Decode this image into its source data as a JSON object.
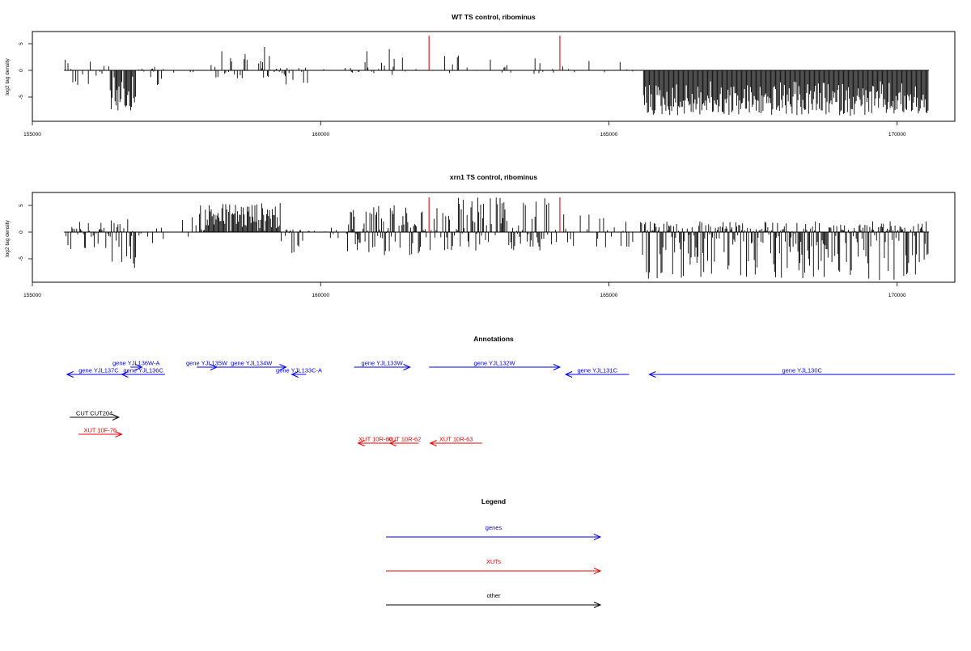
{
  "chart_data": [
    {
      "type": "bar",
      "title": "WT TS control, ribominus",
      "ylabel": "log2 tag density",
      "xlim": [
        155000,
        171000
      ],
      "ylim": [
        -9,
        7
      ],
      "xticks": [
        155000,
        160000,
        165000,
        170000
      ],
      "yticks": [
        -5,
        0,
        5
      ],
      "baseline": [
        155550,
        170550
      ],
      "marker_lines": {
        "color": "#e41a1c",
        "x": [
          161880,
          164150
        ],
        "height": 6.5
      },
      "series": [
        {
          "from": 155550,
          "to": 156350,
          "min": -3,
          "max": 2,
          "density": 0.35
        },
        {
          "from": 156350,
          "to": 156800,
          "min": -7.5,
          "max": -1,
          "density": 0.9
        },
        {
          "from": 156800,
          "to": 157300,
          "min": -3,
          "max": 1,
          "density": 0.35
        },
        {
          "from": 157300,
          "to": 158100,
          "min": -1,
          "max": 2,
          "density": 0.08
        },
        {
          "from": 158100,
          "to": 159250,
          "min": -1.5,
          "max": 4.5,
          "density": 0.55
        },
        {
          "from": 159250,
          "to": 159800,
          "min": -3,
          "max": 0.5,
          "density": 0.45
        },
        {
          "from": 159800,
          "to": 160500,
          "min": -1,
          "max": 1,
          "density": 0.05
        },
        {
          "from": 160500,
          "to": 161300,
          "min": -1,
          "max": 4,
          "density": 0.4
        },
        {
          "from": 161300,
          "to": 161850,
          "min": -0.5,
          "max": 3,
          "density": 0.12
        },
        {
          "from": 161900,
          "to": 164100,
          "min": -1,
          "max": 3,
          "density": 0.15
        },
        {
          "from": 164200,
          "to": 165500,
          "min": -1.5,
          "max": 2,
          "density": 0.1
        },
        {
          "from": 165600,
          "to": 170550,
          "min": -8.5,
          "max": -2,
          "density": 1.0
        }
      ]
    },
    {
      "type": "bar",
      "title": "xrn1 TS control, ribominus",
      "ylabel": "log2 tag density",
      "xlim": [
        155000,
        171000
      ],
      "ylim": [
        -9,
        7
      ],
      "xticks": [
        155000,
        160000,
        165000,
        170000
      ],
      "yticks": [
        -5,
        0,
        5
      ],
      "baseline": [
        155550,
        170550
      ],
      "marker_lines": {
        "color": "#e41a1c",
        "x": [
          161880,
          164150
        ],
        "height": 6.5
      },
      "series": [
        {
          "from": 155550,
          "to": 156350,
          "min": -3.5,
          "max": 2,
          "density": 0.45
        },
        {
          "from": 156350,
          "to": 156800,
          "min": -7,
          "max": 2.5,
          "density": 0.9
        },
        {
          "from": 156800,
          "to": 157350,
          "min": -3,
          "max": 1,
          "density": 0.35
        },
        {
          "from": 157350,
          "to": 157900,
          "min": -1,
          "max": 3,
          "density": 0.1
        },
        {
          "from": 157900,
          "to": 159300,
          "min": 0,
          "max": 5.5,
          "density": 0.95
        },
        {
          "from": 159300,
          "to": 159900,
          "min": -4.5,
          "max": 0.5,
          "density": 0.6
        },
        {
          "from": 159900,
          "to": 160450,
          "min": -2,
          "max": 1,
          "density": 0.15
        },
        {
          "from": 160450,
          "to": 161850,
          "min": -4.5,
          "max": 5,
          "density": 0.9
        },
        {
          "from": 161900,
          "to": 164100,
          "min": -3.5,
          "max": 6.5,
          "density": 0.75
        },
        {
          "from": 164200,
          "to": 165450,
          "min": -3,
          "max": 3.5,
          "density": 0.3
        },
        {
          "from": 165550,
          "to": 170550,
          "min": -9,
          "max": 2,
          "density": 1.0
        }
      ]
    }
  ],
  "annotations": {
    "title": "Annotations",
    "genes": [
      {
        "label": "gene YJL137C",
        "x1": 155600,
        "x2": 156700,
        "dir": "left",
        "row": 1
      },
      {
        "label": "gene YJL136W-A",
        "x1": 156700,
        "x2": 156900,
        "dir": "right",
        "row": 0
      },
      {
        "label": "gene YJL136C",
        "x1": 156550,
        "x2": 157300,
        "dir": "left",
        "row": 1
      },
      {
        "label": "gene YJL135W",
        "x1": 157850,
        "x2": 158200,
        "dir": "right",
        "row": 0
      },
      {
        "label": "gene YJL134W",
        "x1": 158200,
        "x2": 159400,
        "dir": "right",
        "row": 0
      },
      {
        "label": "gene YJL133C-A",
        "x1": 159500,
        "x2": 159750,
        "dir": "left",
        "row": 1
      },
      {
        "label": "gene YJL133W",
        "x1": 160580,
        "x2": 161550,
        "dir": "right",
        "row": 0
      },
      {
        "label": "gene YJL132W",
        "x1": 161880,
        "x2": 164150,
        "dir": "right",
        "row": 0
      },
      {
        "label": "gene YJL131C",
        "x1": 164250,
        "x2": 165350,
        "dir": "left",
        "row": 1
      },
      {
        "label": "gene YJL130C",
        "x1": 165700,
        "x2": 171000,
        "dir": "left",
        "row": 1
      }
    ],
    "cuts": [
      {
        "label": "CUT CUT204",
        "x1": 155650,
        "x2": 156500,
        "dir": "right"
      }
    ],
    "xuts": [
      {
        "label": "XUT 10F-76",
        "x1": 155800,
        "x2": 156550,
        "dir": "right",
        "row": 0
      },
      {
        "label": "XUT 10R-60",
        "x1": 160650,
        "x2": 161250,
        "dir": "left",
        "row": 1
      },
      {
        "label": "XUT 10R-62",
        "x1": 161200,
        "x2": 161700,
        "dir": "left",
        "row": 1
      },
      {
        "label": "XUT 10R-63",
        "x1": 161900,
        "x2": 162800,
        "dir": "left",
        "row": 1
      }
    ]
  },
  "legend": {
    "title": "Legend",
    "items": [
      {
        "label": "genes",
        "color": "#0000ee"
      },
      {
        "label": "XUTs",
        "color": "#ee0000"
      },
      {
        "label": "other",
        "color": "#000000"
      }
    ]
  },
  "colors": {
    "gene": "#0000ee",
    "xut": "#ee0000",
    "other": "#000000",
    "marker": "#e41a1c"
  }
}
